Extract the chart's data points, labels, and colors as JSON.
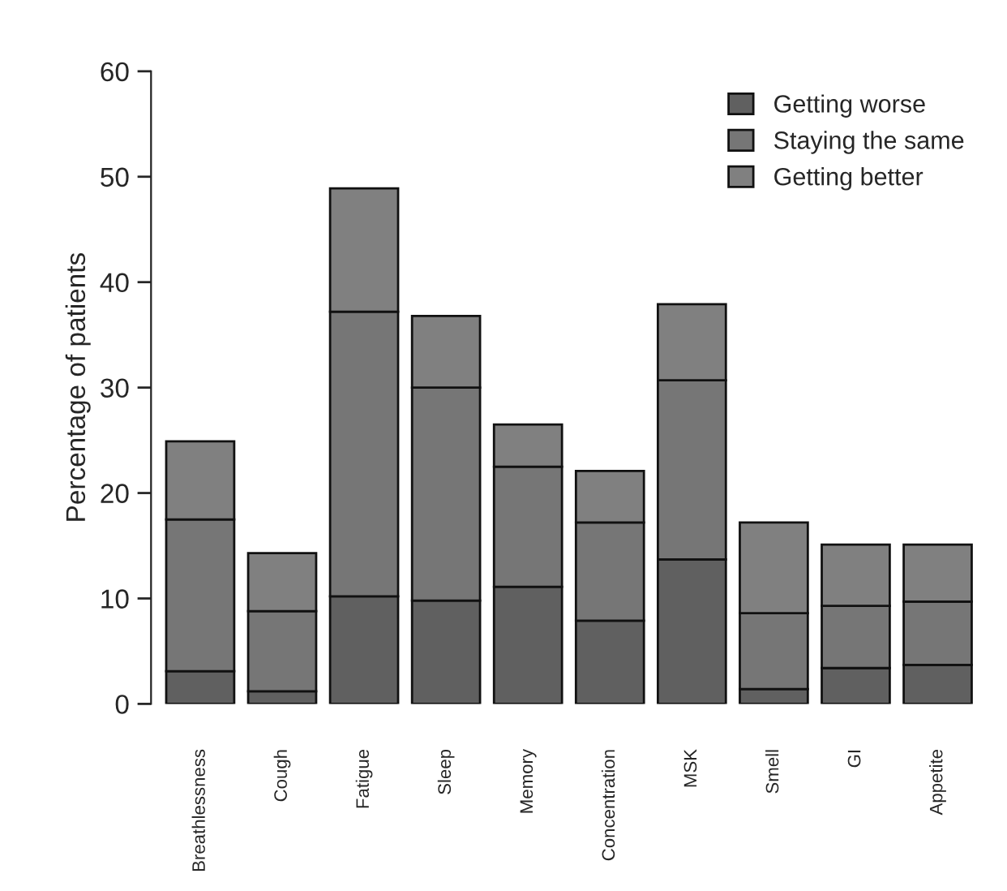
{
  "chart_data": {
    "type": "bar",
    "stacked": true,
    "ylabel": "Percentage of patients",
    "categories": [
      "Breathlessness",
      "Cough",
      "Fatigue",
      "Sleep",
      "Memory",
      "Concentration",
      "MSK",
      "Smell",
      "GI",
      "Appetite"
    ],
    "series": [
      {
        "name": "Getting worse",
        "color": "#606060",
        "values": [
          3.1,
          1.2,
          10.2,
          9.8,
          11.1,
          7.9,
          13.7,
          1.4,
          3.4,
          3.7
        ]
      },
      {
        "name": "Staying the same",
        "color": "#767676",
        "values": [
          14.4,
          7.6,
          27.0,
          20.2,
          11.4,
          9.3,
          17.0,
          7.2,
          5.9,
          6.0
        ]
      },
      {
        "name": "Getting better",
        "color": "#808080",
        "values": [
          7.4,
          5.5,
          11.7,
          6.8,
          4.0,
          4.9,
          7.2,
          8.6,
          5.8,
          5.4
        ]
      }
    ],
    "ylim": [
      0,
      60
    ],
    "yticks": [
      0,
      10,
      20,
      30,
      40,
      50,
      60
    ],
    "grid": false,
    "legend": "top right"
  }
}
